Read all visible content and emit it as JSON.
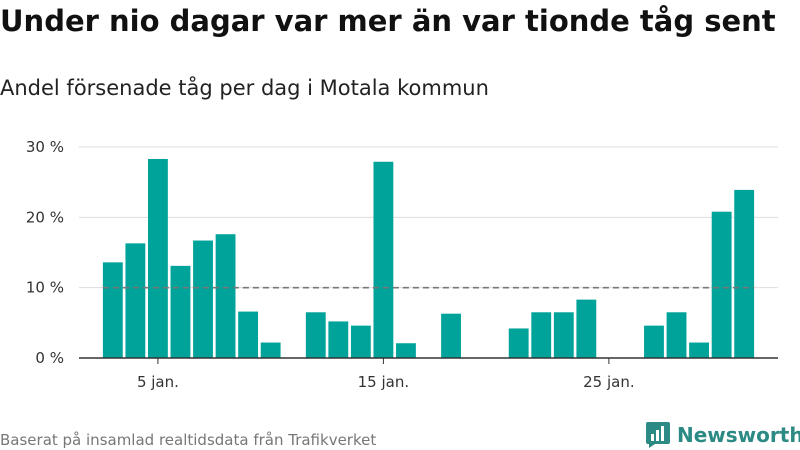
{
  "header": {
    "title": "Under nio dagar var mer än var tionde tåg sent",
    "subtitle": "Andel försenade tåg per dag i Motala kommun"
  },
  "footer": {
    "source": "Baserat på insamlad realtidsdata från Trafikverket",
    "brand": "Newsworthy"
  },
  "colors": {
    "bar": "#00a39a",
    "grid": "#dddddd",
    "axis": "#333333",
    "reference_line": "#777777",
    "brand": "#2b8a83"
  },
  "icons": {
    "brand_logo": "newsworthy-logo-icon"
  },
  "chart_data": {
    "type": "bar",
    "title": "Andel försenade tåg per dag i Motala kommun",
    "xlabel": "",
    "ylabel": "",
    "x": [
      3,
      4,
      5,
      6,
      7,
      8,
      9,
      10,
      11,
      12,
      13,
      14,
      15,
      16,
      17,
      18,
      19,
      20,
      21,
      22,
      23,
      24,
      25,
      26,
      27,
      28,
      29,
      30,
      31
    ],
    "values": [
      13.6,
      16.3,
      28.3,
      13.1,
      16.7,
      17.6,
      6.6,
      2.2,
      0,
      6.5,
      5.2,
      4.6,
      27.9,
      2.1,
      0,
      6.3,
      0,
      0,
      4.2,
      6.5,
      6.5,
      8.3,
      0,
      0,
      4.6,
      6.5,
      2.2,
      20.8,
      23.9
    ],
    "x_ticks": [
      {
        "x": 5,
        "label": "5 jan."
      },
      {
        "x": 15,
        "label": "15 jan."
      },
      {
        "x": 25,
        "label": "25 jan."
      }
    ],
    "y_ticks": [
      {
        "value": 0,
        "label": "0 %"
      },
      {
        "value": 10,
        "label": "10 %"
      },
      {
        "value": 20,
        "label": "20 %"
      },
      {
        "value": 30,
        "label": "30 %"
      }
    ],
    "ylim": [
      0,
      30
    ],
    "xlim": [
      1.5,
      32.5
    ],
    "reference_line": {
      "value": 10,
      "style": "dashed"
    },
    "grid": true,
    "legend": "none"
  }
}
